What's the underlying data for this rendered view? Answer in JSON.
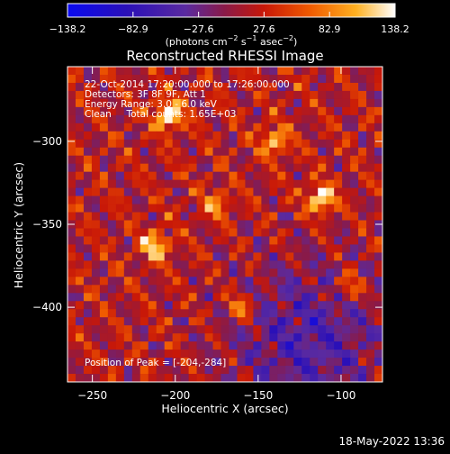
{
  "chart_data": {
    "type": "heatmap",
    "title": "Reconstructed RHESSI Image",
    "xlabel": "Heliocentric X (arcsec)",
    "ylabel": "Heliocentric Y (arcsec)",
    "xlim": [
      -265,
      -75
    ],
    "ylim": [
      -445,
      -255
    ],
    "x_ticks": [
      -250,
      -200,
      -150,
      -100
    ],
    "x_tick_labels": [
      "−250",
      "−200",
      "−150",
      "−100"
    ],
    "y_ticks": [
      -300,
      -350,
      -400
    ],
    "y_tick_labels": [
      "−300",
      "−350",
      "−400"
    ],
    "colorbar": {
      "range": [
        -138.2,
        138.2
      ],
      "tick_values": [
        -138.2,
        -82.9,
        -27.6,
        27.6,
        82.9,
        138.2
      ],
      "tick_labels": [
        "−138.2",
        "−82.9",
        "−27.6",
        "27.6",
        "82.9",
        "138.2"
      ],
      "units_label_parts": [
        "(photons cm",
        "−2",
        " s",
        "−1",
        " asec",
        "−2",
        ")"
      ],
      "colormap": "blue-purple-red-orange-yellow-white"
    },
    "info_lines": [
      "22-Oct-2014 17:20:00.000 to 17:26:00.000",
      "Detectors: 3F 8F 9F, Att 1",
      "Energy Range: 3.0 - 6.0 keV",
      "Clean     Total counts: 1.65E+03"
    ],
    "peak_label": "Position of Peak = [-204,-284]",
    "peak_position": [
      -204,
      -284
    ],
    "peak_value": 138.2,
    "bright_spots": [
      {
        "x": -204,
        "y": -284,
        "value": 138.2
      },
      {
        "x": -112,
        "y": -335,
        "value": 125
      },
      {
        "x": -212,
        "y": -363,
        "value": 110
      },
      {
        "x": -140,
        "y": -300,
        "value": 95
      },
      {
        "x": -160,
        "y": -400,
        "value": 80
      },
      {
        "x": -95,
        "y": -388,
        "value": 78
      },
      {
        "x": -175,
        "y": -338,
        "value": 70
      }
    ]
  },
  "timestamp": "18-May-2022 13:36"
}
